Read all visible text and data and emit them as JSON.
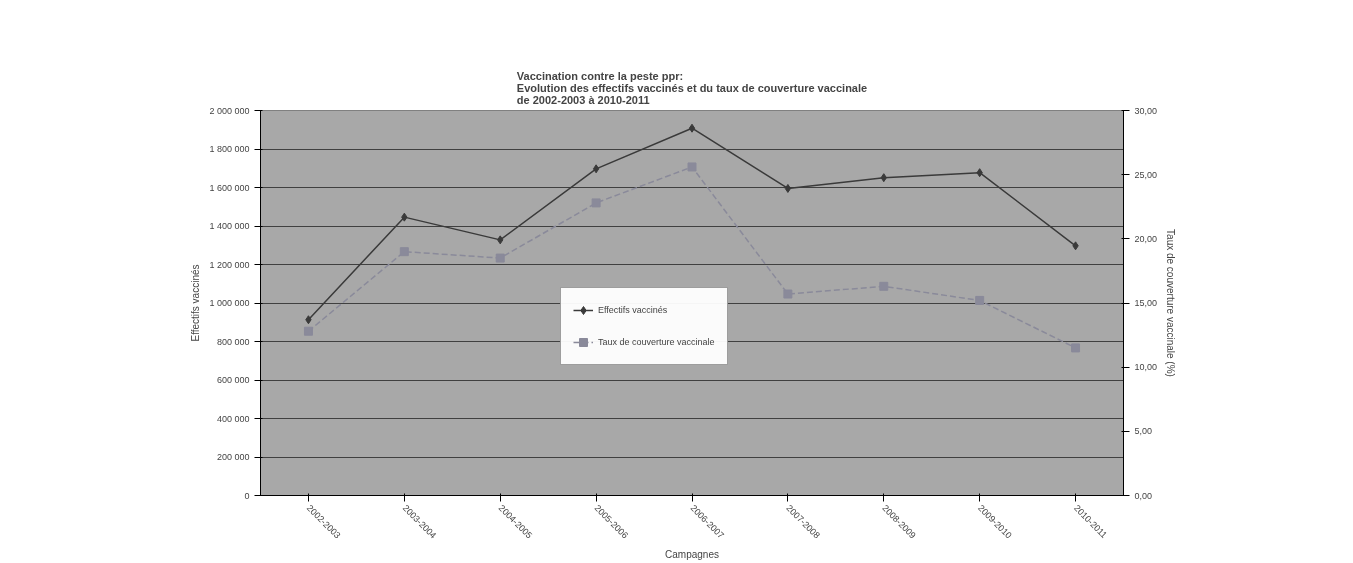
{
  "chart_data": {
    "type": "line",
    "title": "Vaccination contre la peste ppr:\nEvolution des effectifs vaccinés et du taux de couverture vaccinale\nde 2002-2003 à 2010-2011",
    "xlabel": "Campagnes",
    "ylabel": "Effectifs vaccinés",
    "y2label": "Taux de couverture vaccinale (%)",
    "categories": [
      "2002-2003",
      "2003-2004",
      "2004-2005",
      "2005-2006",
      "2006-2007",
      "2007-2008",
      "2008-2009",
      "2009-2010",
      "2010-2011"
    ],
    "series": [
      {
        "name": "Effectifs vaccinés",
        "color": "#3a3a3a",
        "marker": "diamond",
        "line_style": "solid",
        "values": [
          913000,
          1446000,
          1328000,
          1697000,
          1908000,
          1595000,
          1651000,
          1677000,
          1297000
        ]
      },
      {
        "name": "Taux de couverture vaccinale",
        "color": "#8a8a9a",
        "marker": "square",
        "line_style": "dashed",
        "axis": "y2",
        "values": [
          12.8,
          19.0,
          18.5,
          22.8,
          25.6,
          15.7,
          16.3,
          15.2,
          11.5
        ]
      }
    ],
    "ylim": [
      0,
      2000000
    ],
    "yticks": [
      0,
      {
        "value": 200000,
        "label": "200 000"
      },
      {
        "value": 400000,
        "label": "400 000"
      },
      {
        "value": 600000,
        "label": "600 000"
      },
      {
        "value": 800000,
        "label": "800 000"
      },
      {
        "value": 1000000,
        "label": "1 000 000"
      },
      {
        "value": 1200000,
        "label": "1 200 000"
      },
      {
        "value": 1400000,
        "label": "1 400 000"
      },
      {
        "value": 1600000,
        "label": "1 600 000"
      },
      {
        "value": 1800000,
        "label": "1 800 000"
      },
      {
        "value": 2000000,
        "label": "2 000 000"
      }
    ],
    "y2lim": [
      0,
      30
    ],
    "y2ticks": [
      {
        "value": 0,
        "label": "0,00"
      },
      {
        "value": 5,
        "label": "5,00"
      },
      {
        "value": 10,
        "label": "10,00"
      },
      {
        "value": 15,
        "label": "15,00"
      },
      {
        "value": 20,
        "label": "20,00"
      },
      {
        "value": 25,
        "label": "25,00"
      },
      {
        "value": 30,
        "label": "30,00"
      }
    ],
    "grid": "y",
    "legend": "center"
  }
}
